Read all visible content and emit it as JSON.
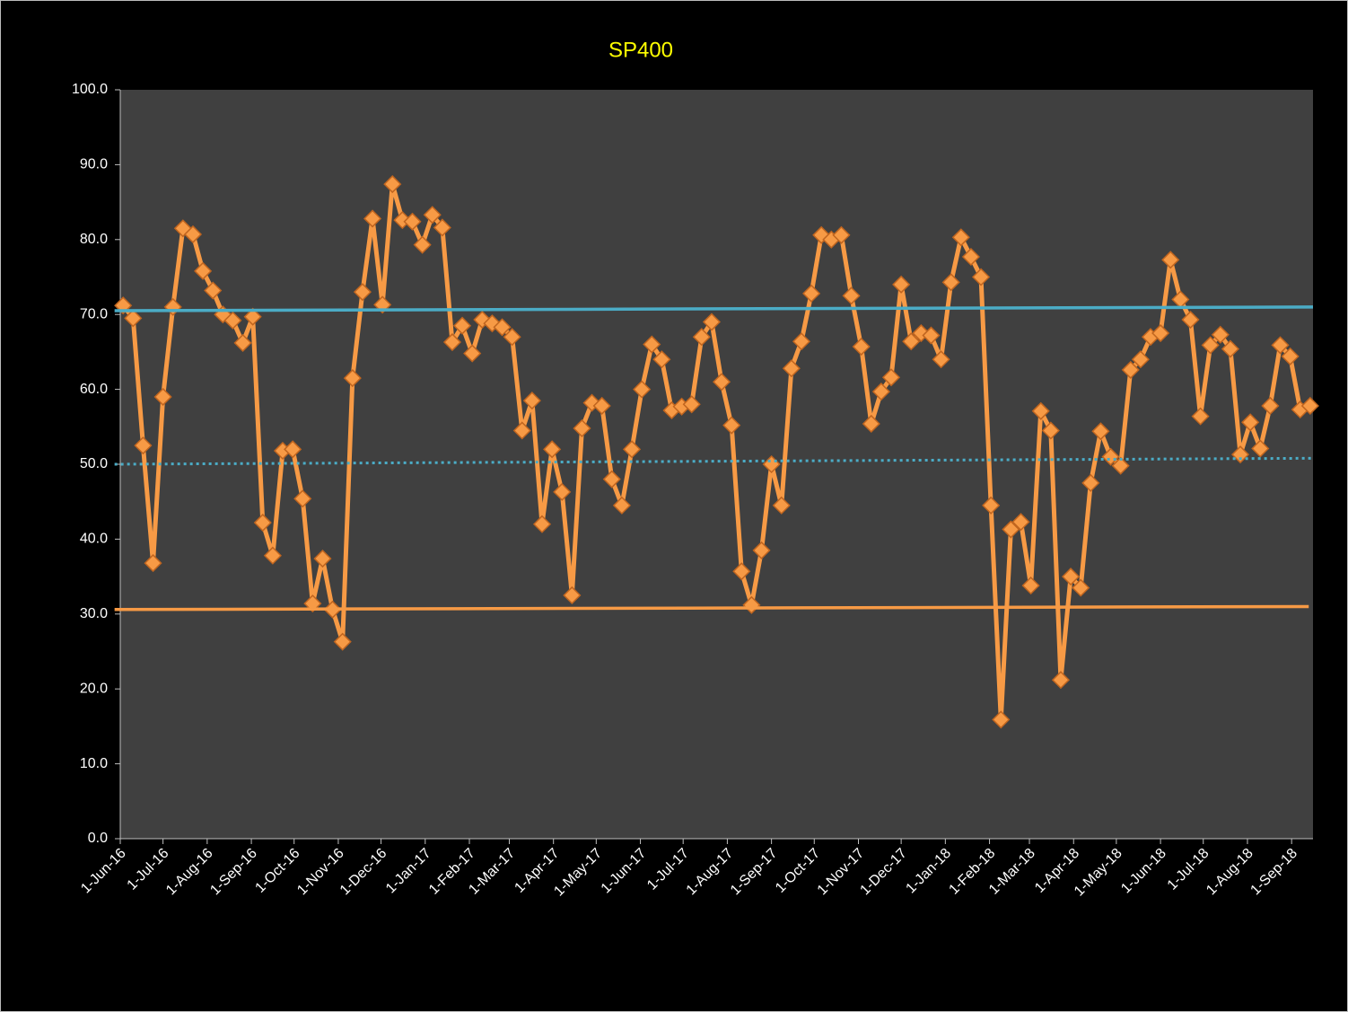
{
  "chart_data": {
    "type": "line",
    "title": "SP400",
    "title_color": "#ffff00",
    "x": [
      "2016-06-03",
      "2016-06-10",
      "2016-06-17",
      "2016-06-24",
      "2016-07-01",
      "2016-07-08",
      "2016-07-15",
      "2016-07-22",
      "2016-07-29",
      "2016-08-05",
      "2016-08-12",
      "2016-08-19",
      "2016-08-26",
      "2016-09-02",
      "2016-09-09",
      "2016-09-16",
      "2016-09-23",
      "2016-09-30",
      "2016-10-07",
      "2016-10-14",
      "2016-10-21",
      "2016-10-28",
      "2016-11-04",
      "2016-11-11",
      "2016-11-18",
      "2016-11-25",
      "2016-12-02",
      "2016-12-09",
      "2016-12-16",
      "2016-12-23",
      "2016-12-30",
      "2017-01-06",
      "2017-01-13",
      "2017-01-20",
      "2017-01-27",
      "2017-02-03",
      "2017-02-10",
      "2017-02-17",
      "2017-02-24",
      "2017-03-03",
      "2017-03-10",
      "2017-03-17",
      "2017-03-24",
      "2017-03-31",
      "2017-04-07",
      "2017-04-14",
      "2017-04-21",
      "2017-04-28",
      "2017-05-05",
      "2017-05-12",
      "2017-05-19",
      "2017-05-26",
      "2017-06-02",
      "2017-06-09",
      "2017-06-16",
      "2017-06-23",
      "2017-06-30",
      "2017-07-07",
      "2017-07-14",
      "2017-07-21",
      "2017-07-28",
      "2017-08-04",
      "2017-08-11",
      "2017-08-18",
      "2017-08-25",
      "2017-09-01",
      "2017-09-08",
      "2017-09-15",
      "2017-09-22",
      "2017-09-29",
      "2017-10-06",
      "2017-10-13",
      "2017-10-20",
      "2017-10-27",
      "2017-11-03",
      "2017-11-10",
      "2017-11-17",
      "2017-11-24",
      "2017-12-01",
      "2017-12-08",
      "2017-12-15",
      "2017-12-22",
      "2017-12-29",
      "2018-01-05",
      "2018-01-12",
      "2018-01-19",
      "2018-01-26",
      "2018-02-02",
      "2018-02-09",
      "2018-02-16",
      "2018-02-23",
      "2018-03-02",
      "2018-03-09",
      "2018-03-16",
      "2018-03-23",
      "2018-03-30",
      "2018-04-06",
      "2018-04-13",
      "2018-04-20",
      "2018-04-27",
      "2018-05-04",
      "2018-05-11",
      "2018-05-18",
      "2018-05-25",
      "2018-06-01",
      "2018-06-08",
      "2018-06-15",
      "2018-06-22",
      "2018-06-29",
      "2018-07-06",
      "2018-07-13",
      "2018-07-20",
      "2018-07-27",
      "2018-08-03",
      "2018-08-10",
      "2018-08-17",
      "2018-08-24",
      "2018-08-31",
      "2018-09-07",
      "2018-09-14"
    ],
    "series": [
      {
        "color": "#f79a45",
        "marker": "diamond",
        "values": [
          71.2,
          69.5,
          52.5,
          36.8,
          59,
          71,
          81.5,
          80.7,
          75.8,
          73.2,
          70,
          69.2,
          66.2,
          69.7,
          42.2,
          37.8,
          51.8,
          52,
          45.4,
          31.4,
          37.4,
          30.6,
          26.3,
          61.5,
          73,
          82.8,
          71.3,
          87.4,
          82.6,
          82.4,
          79.3,
          83.3,
          81.6,
          66.3,
          68.5,
          64.8,
          69.3,
          68.8,
          68.3,
          67,
          54.5,
          58.5,
          42,
          52,
          46.3,
          32.5,
          54.8,
          58.2,
          57.8,
          48,
          44.5,
          52,
          60,
          66,
          64,
          57.2,
          57.7,
          58,
          67,
          69,
          61,
          55.2,
          35.7,
          31.2,
          38.5,
          50,
          44.5,
          62.8,
          66.4,
          72.8,
          80.6,
          80,
          80.6,
          72.5,
          65.7,
          55.4,
          59.7,
          61.6,
          74,
          66.4,
          67.5,
          67.2,
          64,
          74.3,
          80.3,
          77.7,
          75,
          44.5,
          15.9,
          41.3,
          42.3,
          33.8,
          57.1,
          54.5,
          21.2,
          35,
          33.5,
          47.5,
          54.4,
          51,
          49.8,
          62.6,
          64,
          67,
          67.5,
          77.3,
          72,
          69.3,
          56.4,
          65.9,
          67.3,
          65.4,
          51.3,
          55.6,
          52.1,
          57.8,
          65.9,
          64.4,
          57.3,
          57.8
        ]
      },
      {
        "color": "#4bacc6",
        "dash": "solid",
        "x": [
          "2016-05-28",
          "2018-09-16"
        ],
        "values": [
          70.5,
          71.0
        ]
      },
      {
        "color": "#4bacc6",
        "dash": "dotted",
        "x": [
          "2016-05-28",
          "2018-09-16"
        ],
        "values": [
          50.0,
          50.8
        ]
      },
      {
        "color": "#f79a45",
        "dash": "solid",
        "x": [
          "2016-05-28",
          "2018-09-13"
        ],
        "values": [
          30.6,
          31.0
        ]
      }
    ],
    "xlim": [
      "2016-06-01",
      "2018-09-16"
    ],
    "xticks": [
      {
        "value": "2016-06-01",
        "label": "1-Jun-16"
      },
      {
        "value": "2016-07-01",
        "label": "1-Jul-16"
      },
      {
        "value": "2016-08-01",
        "label": "1-Aug-16"
      },
      {
        "value": "2016-09-01",
        "label": "1-Sep-16"
      },
      {
        "value": "2016-10-01",
        "label": "1-Oct-16"
      },
      {
        "value": "2016-11-01",
        "label": "1-Nov-16"
      },
      {
        "value": "2016-12-01",
        "label": "1-Dec-16"
      },
      {
        "value": "2017-01-01",
        "label": "1-Jan-17"
      },
      {
        "value": "2017-02-01",
        "label": "1-Feb-17"
      },
      {
        "value": "2017-03-01",
        "label": "1-Mar-17"
      },
      {
        "value": "2017-04-01",
        "label": "1-Apr-17"
      },
      {
        "value": "2017-05-01",
        "label": "1-May-17"
      },
      {
        "value": "2017-06-01",
        "label": "1-Jun-17"
      },
      {
        "value": "2017-07-01",
        "label": "1-Jul-17"
      },
      {
        "value": "2017-08-01",
        "label": "1-Aug-17"
      },
      {
        "value": "2017-09-01",
        "label": "1-Sep-17"
      },
      {
        "value": "2017-10-01",
        "label": "1-Oct-17"
      },
      {
        "value": "2017-11-01",
        "label": "1-Nov-17"
      },
      {
        "value": "2017-12-01",
        "label": "1-Dec-17"
      },
      {
        "value": "2018-01-01",
        "label": "1-Jan-18"
      },
      {
        "value": "2018-02-01",
        "label": "1-Feb-18"
      },
      {
        "value": "2018-03-01",
        "label": "1-Mar-18"
      },
      {
        "value": "2018-04-01",
        "label": "1-Apr-18"
      },
      {
        "value": "2018-05-01",
        "label": "1-May-18"
      },
      {
        "value": "2018-06-01",
        "label": "1-Jun-18"
      },
      {
        "value": "2018-07-01",
        "label": "1-Jul-18"
      },
      {
        "value": "2018-08-01",
        "label": "1-Aug-18"
      },
      {
        "value": "2018-09-01",
        "label": "1-Sep-18"
      }
    ],
    "ylim": [
      0,
      100
    ],
    "yticks": [
      {
        "value": 0,
        "label": "0.0"
      },
      {
        "value": 10,
        "label": "10.0"
      },
      {
        "value": 20,
        "label": "20.0"
      },
      {
        "value": 30,
        "label": "30.0"
      },
      {
        "value": 40,
        "label": "40.0"
      },
      {
        "value": 50,
        "label": "50.0"
      },
      {
        "value": 60,
        "label": "60.0"
      },
      {
        "value": 70,
        "label": "70.0"
      },
      {
        "value": 80,
        "label": "80.0"
      },
      {
        "value": 90,
        "label": "90.0"
      },
      {
        "value": 100,
        "label": "100.0"
      }
    ],
    "plot_background": "#404040",
    "grid": false
  }
}
